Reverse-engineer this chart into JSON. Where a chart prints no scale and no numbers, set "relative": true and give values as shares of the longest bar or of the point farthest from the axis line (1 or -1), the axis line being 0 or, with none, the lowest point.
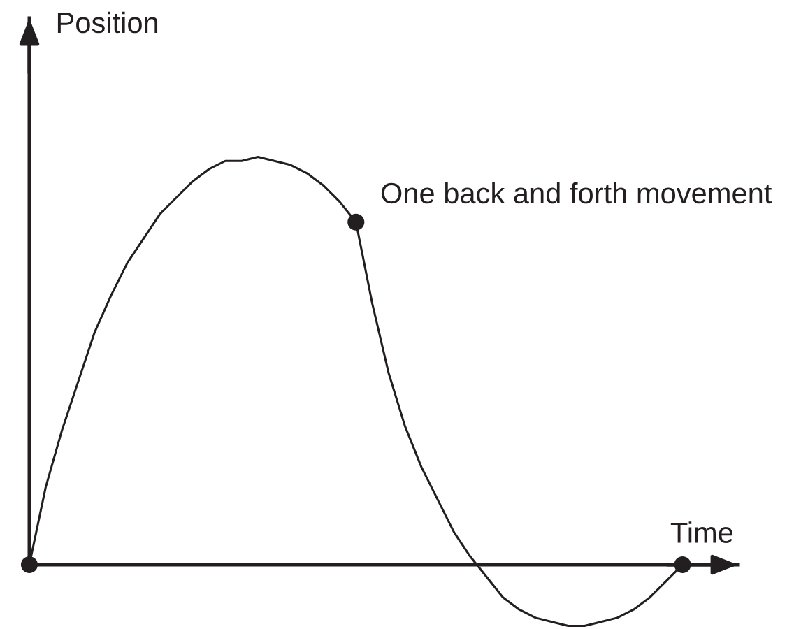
{
  "chart_data": {
    "type": "line",
    "relative": true,
    "xlabel": "Time",
    "ylabel": "Position",
    "annotations": [
      "One back and forth movement"
    ],
    "categories": [
      null,
      null,
      null,
      null,
      null,
      null,
      null,
      null,
      null,
      null,
      null,
      null,
      null,
      null,
      null,
      null,
      null,
      null,
      null,
      null,
      null,
      null,
      null,
      null,
      null,
      null,
      null,
      null,
      null,
      null,
      null,
      null,
      null,
      null,
      null,
      null,
      null,
      null,
      null,
      null,
      null
    ],
    "series": [
      {
        "color": "#231f20",
        "values": [
          0,
          0.19,
          0.33,
          0.45,
          0.57,
          0.66,
          0.74,
          0.8,
          0.86,
          0.9,
          0.94,
          0.97,
          0.99,
          0.99,
          1,
          0.99,
          0.98,
          0.96,
          0.93,
          0.89,
          0.84,
          0.64,
          0.47,
          0.34,
          0.24,
          0.16,
          0.08,
          0.02,
          -0.03,
          -0.08,
          -0.11,
          -0.13,
          -0.14,
          -0.15,
          -0.15,
          -0.14,
          -0.13,
          -0.11,
          -0.08,
          -0.04,
          0
        ]
      },
      {
        "color": "#231f20",
        "marker": "circle",
        "values": [
          0,
          null,
          null,
          null,
          null,
          null,
          null,
          null,
          null,
          null,
          null,
          null,
          null,
          null,
          null,
          null,
          null,
          null,
          null,
          null,
          0.84,
          null,
          null,
          null,
          null,
          null,
          null,
          null,
          null,
          null,
          null,
          null,
          null,
          null,
          null,
          null,
          null,
          null,
          null,
          null,
          0
        ]
      }
    ]
  }
}
